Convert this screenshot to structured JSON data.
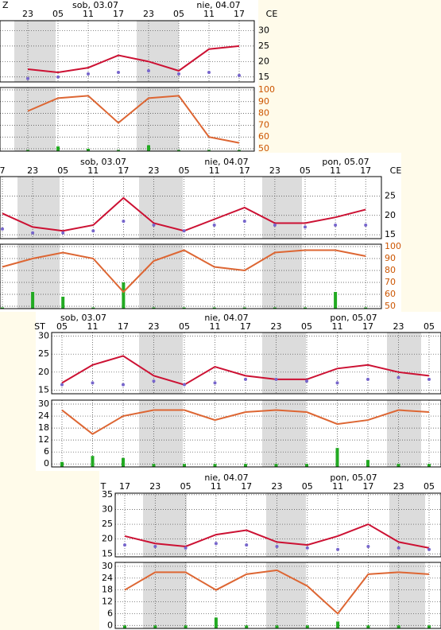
{
  "chart_data": [
    {
      "type": "meteogram",
      "left_label": "Z",
      "axis_side": "right",
      "axis_title": "CE",
      "day_labels": [
        "sob, 03.07",
        "nie, 04.07"
      ],
      "categories": [
        "23",
        "05",
        "11",
        "17",
        "23",
        "05",
        "11",
        "17"
      ],
      "ylim": [
        13.4,
        33.2
      ],
      "yticks": [
        15,
        20,
        25,
        30
      ],
      "series": [
        {
          "color": "#cc1133",
          "values": [
            17.5,
            16.5,
            18,
            22,
            20,
            17,
            24,
            25
          ]
        },
        {
          "color": "#7766cc",
          "style": "dots",
          "values": [
            14.5,
            15,
            16,
            16.5,
            17,
            16,
            16.5,
            15.5
          ]
        }
      ],
      "lower": {
        "ylim": [
          48,
          102
        ],
        "yticks": [
          50,
          60,
          70,
          80,
          90,
          100
        ],
        "tick_color": "#cc5500",
        "series": [
          {
            "color": "#dd6633",
            "values": [
              82,
              93,
              95,
              72,
              93,
              95,
              60,
              55
            ]
          }
        ],
        "bars": {
          "color": "#22aa22",
          "values": [
            49,
            52,
            50,
            49,
            53,
            49,
            49,
            49
          ]
        }
      }
    },
    {
      "type": "meteogram",
      "axis_side": "right",
      "axis_title": "CE",
      "day_labels": [
        "sob, 03.07",
        "nie, 04.07",
        "pon, 05.07"
      ],
      "categories": [
        "7",
        "23",
        "05",
        "11",
        "17",
        "23",
        "05",
        "11",
        "17",
        "23",
        "05",
        "11",
        "17"
      ],
      "ylim": [
        14,
        30
      ],
      "yticks": [
        15,
        20,
        25
      ],
      "series": [
        {
          "color": "#cc1133",
          "values": [
            20.5,
            17,
            16,
            17.5,
            24.5,
            18,
            16,
            19,
            22,
            18,
            18,
            19.5,
            21.5
          ]
        },
        {
          "color": "#7766cc",
          "style": "dots",
          "values": [
            16.5,
            15.5,
            15.5,
            16,
            18.5,
            17.5,
            16,
            17.5,
            18.5,
            17.5,
            17,
            17.5,
            17.5
          ]
        }
      ],
      "lower": {
        "ylim": [
          48,
          102
        ],
        "yticks": [
          50,
          60,
          70,
          80,
          90,
          100
        ],
        "tick_color": "#cc5500",
        "series": [
          {
            "color": "#dd6633",
            "values": [
              83,
              90,
              95,
              90,
              62,
              88,
              97,
              83,
              80,
              95,
              97,
              97,
              92
            ]
          }
        ],
        "bars": {
          "color": "#22aa22",
          "values": [
            49,
            62,
            58,
            49,
            70,
            49,
            49,
            49,
            49,
            49,
            49,
            62,
            49
          ]
        }
      }
    },
    {
      "type": "meteogram",
      "axis_side": "left",
      "axis_title": "ST",
      "day_labels": [
        "sob, 03.07",
        "nie, 04.07",
        "pon, 05.07"
      ],
      "categories": [
        "05",
        "11",
        "17",
        "23",
        "05",
        "11",
        "17",
        "23",
        "05",
        "11",
        "17",
        "23",
        "05"
      ],
      "ylim": [
        14,
        31
      ],
      "yticks": [
        15,
        20,
        25,
        30
      ],
      "series": [
        {
          "color": "#cc1133",
          "values": [
            17,
            22,
            24.5,
            19,
            16.5,
            21.5,
            19,
            18,
            18,
            21,
            22,
            20,
            19
          ]
        },
        {
          "color": "#7766cc",
          "style": "dots",
          "values": [
            16.5,
            17,
            16.5,
            17.5,
            16.5,
            17,
            18,
            18,
            17.5,
            17,
            18,
            18.5,
            18
          ]
        }
      ],
      "lower": {
        "ylim": [
          -1.5,
          32
        ],
        "yticks": [
          0,
          6,
          12,
          18,
          24,
          30
        ],
        "tick_color": "#000000",
        "series": [
          {
            "color": "#dd6633",
            "values": [
              27,
              15,
              24,
              27,
              27,
              22,
              26,
              27,
              26,
              20,
              22,
              27,
              26
            ]
          }
        ],
        "bars": {
          "color": "#22aa22",
          "values": [
            1,
            4,
            3,
            0,
            0,
            0,
            0,
            0,
            0,
            8,
            2,
            0,
            0
          ]
        }
      }
    },
    {
      "type": "meteogram",
      "axis_side": "left",
      "axis_title": "T",
      "day_labels": [
        "nie, 04.07",
        "pon, 05.07"
      ],
      "categories": [
        "17",
        "23",
        "05",
        "11",
        "17",
        "23",
        "05",
        "11",
        "17",
        "23",
        "05"
      ],
      "ylim": [
        14,
        35.5
      ],
      "yticks": [
        15,
        20,
        25,
        30,
        35
      ],
      "series": [
        {
          "color": "#cc1133",
          "values": [
            21,
            18.5,
            17.5,
            21.5,
            23,
            19,
            18,
            21,
            25,
            19,
            17
          ]
        },
        {
          "color": "#7766cc",
          "style": "dots",
          "values": [
            18,
            17.5,
            17,
            18.5,
            18,
            17.5,
            17,
            16.5,
            17.5,
            17,
            16.5
          ]
        }
      ],
      "lower": {
        "ylim": [
          -1.5,
          32
        ],
        "yticks": [
          0,
          6,
          12,
          18,
          24,
          30
        ],
        "tick_color": "#000000",
        "series": [
          {
            "color": "#dd6633",
            "values": [
              18,
              27,
              27,
              18,
              26,
              28,
              20,
              6,
              26,
              27,
              26
            ]
          }
        ],
        "bars": {
          "color": "#22aa22",
          "values": [
            0,
            0,
            0,
            4,
            0,
            0,
            0,
            2,
            0,
            0,
            0
          ]
        }
      }
    }
  ]
}
